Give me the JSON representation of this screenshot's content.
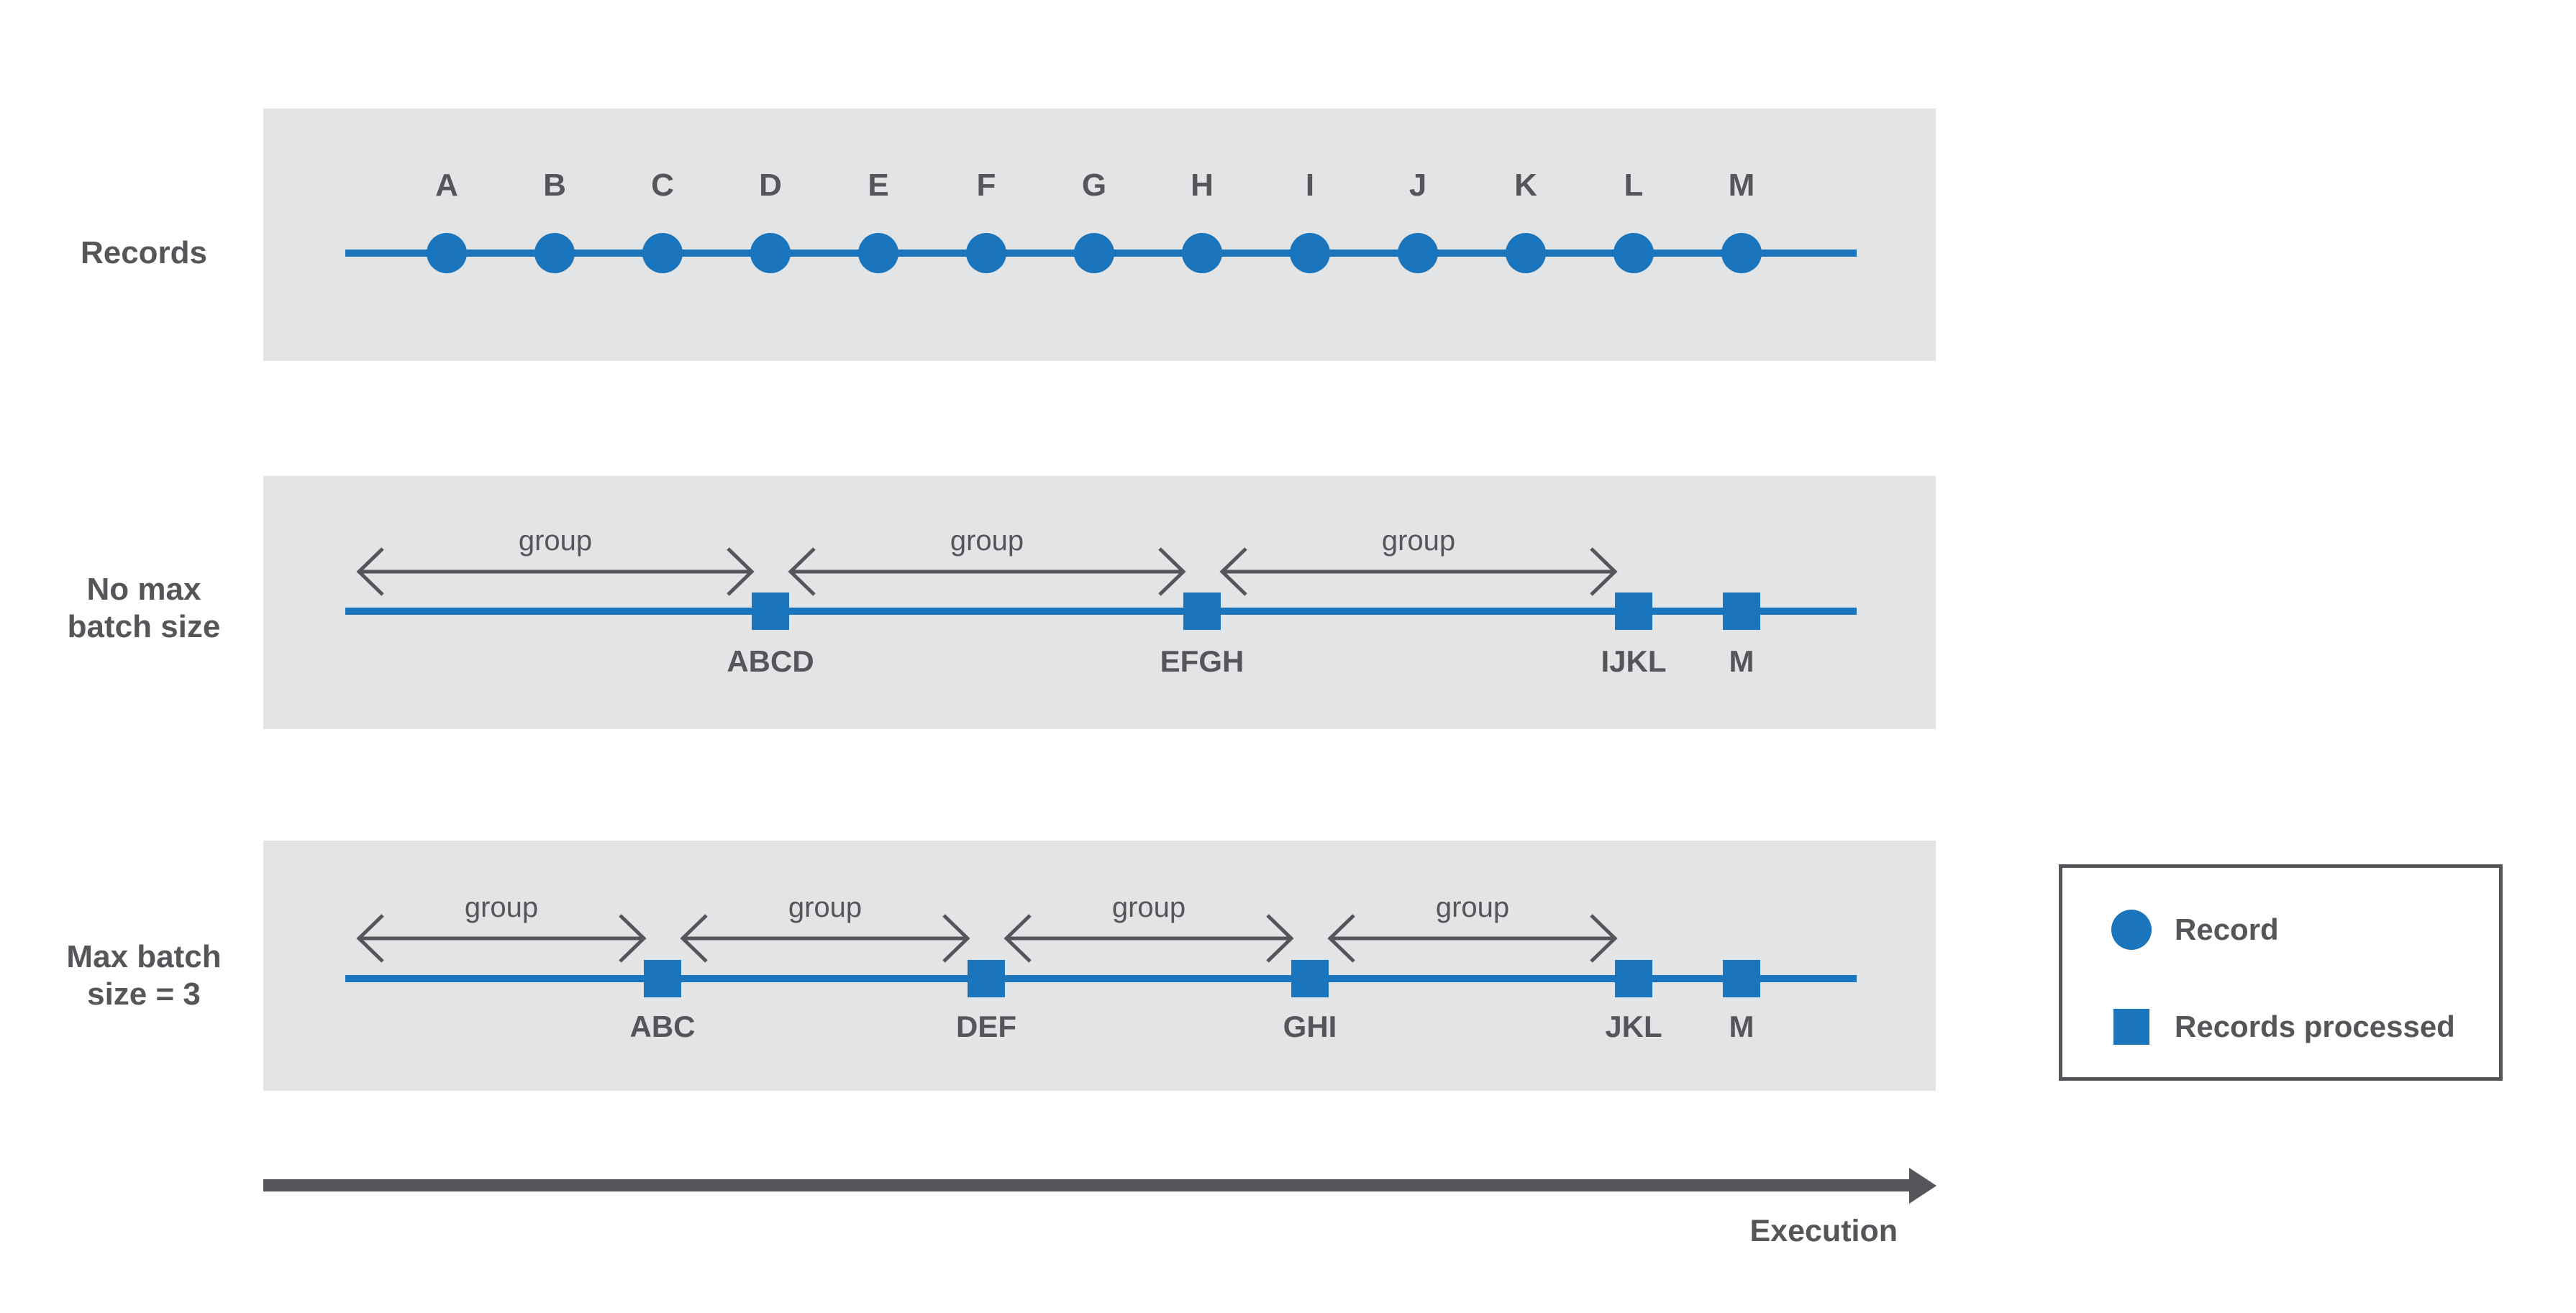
{
  "colors": {
    "record_blue": "#1b75bd",
    "panel_gray": "#e3e4e6",
    "text_dark_gray": "#54565a",
    "background": "#ffffff"
  },
  "diagram": {
    "group_label": "group",
    "execution_label": "Execution",
    "rows": [
      {
        "label": "Records",
        "type": "records",
        "records": [
          "A",
          "B",
          "C",
          "D",
          "E",
          "F",
          "G",
          "H",
          "I",
          "J",
          "K",
          "L",
          "M"
        ]
      },
      {
        "label": "No max\nbatch size",
        "type": "batched",
        "batches": [
          {
            "label": "ABCD",
            "records": [
              "A",
              "B",
              "C",
              "D"
            ]
          },
          {
            "label": "EFGH",
            "records": [
              "E",
              "F",
              "G",
              "H"
            ]
          },
          {
            "label": "IJKL",
            "records": [
              "I",
              "J",
              "K",
              "L"
            ]
          },
          {
            "label": "M",
            "records": [
              "M"
            ]
          }
        ]
      },
      {
        "label": "Max batch\nsize = 3",
        "type": "batched",
        "batches": [
          {
            "label": "ABC",
            "records": [
              "A",
              "B",
              "C"
            ]
          },
          {
            "label": "DEF",
            "records": [
              "D",
              "E",
              "F"
            ]
          },
          {
            "label": "GHI",
            "records": [
              "G",
              "H",
              "I"
            ]
          },
          {
            "label": "JKL",
            "records": [
              "J",
              "K",
              "L"
            ]
          },
          {
            "label": "M",
            "records": [
              "M"
            ]
          }
        ]
      }
    ],
    "legend": {
      "items": [
        {
          "shape": "circle",
          "label": "Record"
        },
        {
          "shape": "square",
          "label": "Records processed"
        }
      ]
    }
  }
}
